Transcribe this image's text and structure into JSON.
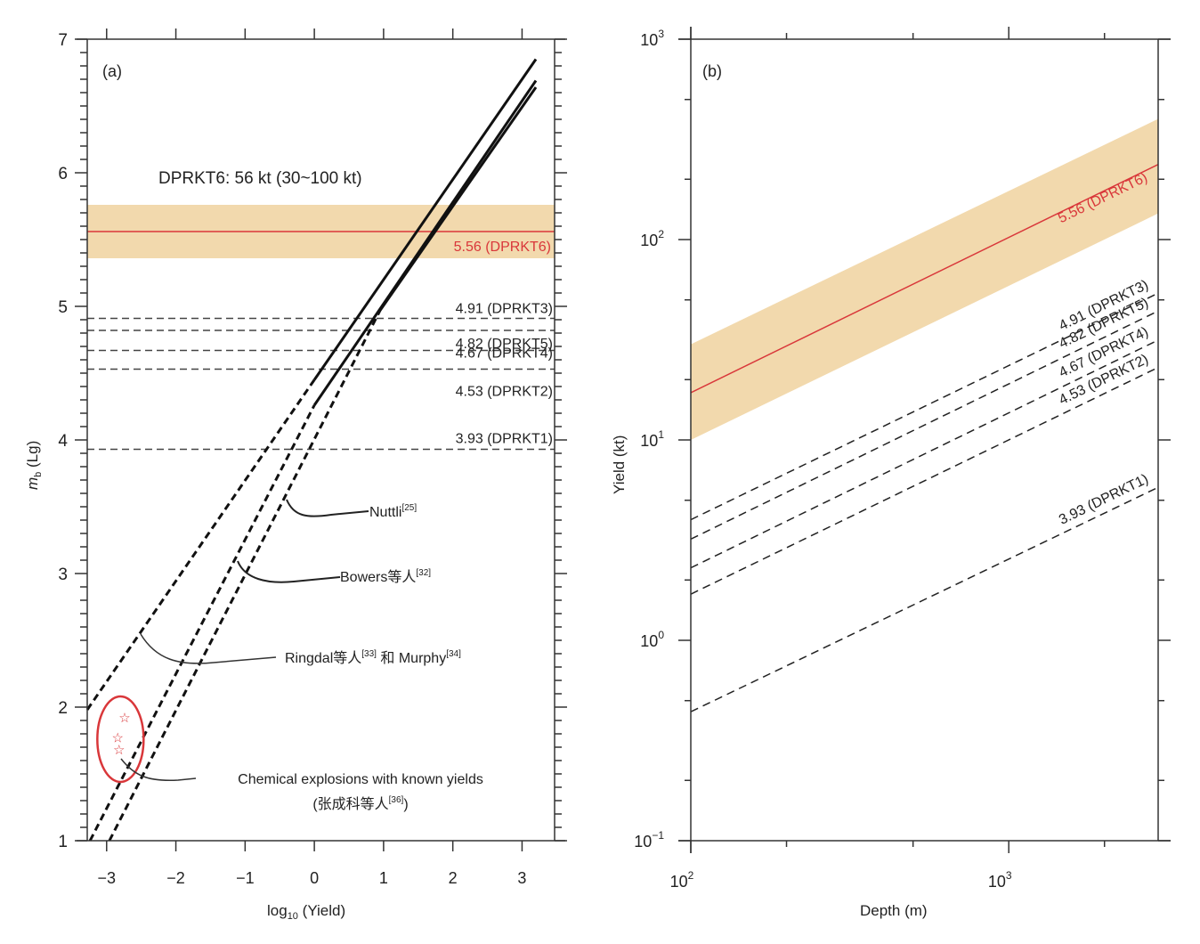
{
  "chart_data": [
    {
      "panel": "a",
      "type": "line",
      "panel_label": "(a)",
      "xlabel_main": "log",
      "xlabel_sub": "10",
      "xlabel_rest": " (Yield)",
      "ylabel_main": "m",
      "ylabel_sub": "b",
      "ylabel_rest": " (Lg)",
      "xlim": [
        -3.28,
        3.47
      ],
      "ylim": [
        1,
        7
      ],
      "xticks": [
        -3,
        -2,
        -1,
        0,
        1,
        2,
        3
      ],
      "xtick_labels": [
        "−3",
        "−2",
        "−1",
        "0",
        "1",
        "2",
        "3"
      ],
      "yticks": [
        1,
        2,
        3,
        4,
        5,
        6,
        7
      ],
      "ytick_labels": [
        "1",
        "2",
        "3",
        "4",
        "5",
        "6",
        "7"
      ],
      "y_minor_step": 0.1,
      "title_annotation": "DPRKT6: 56 kt (30~100 kt)",
      "band": {
        "y_low": 5.36,
        "y_high": 5.76,
        "color": "#f2d9ad"
      },
      "red_line": {
        "y": 5.56,
        "label": "5.56 (DPRKT6)",
        "color": "#d9373a"
      },
      "dashed_levels": [
        {
          "y": 4.91,
          "label": "4.91 (DPRKT3)"
        },
        {
          "y": 4.82,
          "label": "4.82 (DPRKT5)"
        },
        {
          "y": 4.67,
          "label": "4.67 (DPRKT4)"
        },
        {
          "y": 4.53,
          "label": "4.53 (DPRKT2)"
        },
        {
          "y": 3.93,
          "label": "3.93 (DPRKT1)"
        }
      ],
      "series": [
        {
          "name": "Ringdal & Murphy",
          "dashed": [
            [
              -3.28,
              1.98
            ],
            [
              0,
              4.45
            ]
          ],
          "solid": [
            [
              0,
              4.45
            ],
            [
              3.2,
              6.85
            ]
          ]
        },
        {
          "name": "Bowers",
          "dashed": [
            [
              -3.24,
              1.0
            ],
            [
              0,
              4.26
            ]
          ],
          "solid": [
            [
              0,
              4.26
            ],
            [
              3.2,
              6.69
            ]
          ]
        },
        {
          "name": "Nuttli",
          "dashed": [
            [
              -2.96,
              1.0
            ],
            [
              0.95,
              4.97
            ]
          ],
          "solid": [
            [
              0.95,
              4.97
            ],
            [
              3.2,
              6.64
            ]
          ]
        }
      ],
      "stars": [
        [
          -2.74,
          1.92
        ],
        [
          -2.84,
          1.77
        ],
        [
          -2.82,
          1.68
        ]
      ],
      "ellipse": {
        "cx": -2.8,
        "cy": 1.76,
        "rx": 0.33,
        "ry": 0.32,
        "color": "#d9373a"
      },
      "annotations": [
        {
          "text": "Nuttli",
          "sup": "[25]"
        },
        {
          "text": "Bowers等人",
          "sup": "[32]"
        },
        {
          "text": "Ringdal等人",
          "sup": "[33]",
          "text2": " 和 Murphy",
          "sup2": "[34]"
        },
        {
          "text": "Chemical explosions with known yields"
        },
        {
          "text": "(张成科等人",
          "sup": "[36]",
          "text2": ")"
        }
      ]
    },
    {
      "panel": "b",
      "type": "line",
      "panel_label": "(b)",
      "xlabel": "Depth (m)",
      "ylabel": "Yield (kt)",
      "xscale": "log",
      "yscale": "log",
      "xlim": [
        100,
        2950
      ],
      "ylim": [
        0.1,
        1000
      ],
      "xticks_major": [
        {
          "base": "10",
          "exp": "2",
          "value": 100
        },
        {
          "base": "10",
          "exp": "3",
          "value": 1000
        }
      ],
      "xticks_minor": [
        200,
        500,
        2000
      ],
      "yticks_major": [
        {
          "base": "10",
          "exp": "−1",
          "value": 0.1
        },
        {
          "base": "10",
          "exp": "0",
          "value": 1
        },
        {
          "base": "10",
          "exp": "1",
          "value": 10
        },
        {
          "base": "10",
          "exp": "2",
          "value": 100
        },
        {
          "base": "10",
          "exp": "3",
          "value": 1000
        }
      ],
      "yticks_minor": [
        0.2,
        0.5,
        2,
        5,
        20,
        50,
        200,
        500
      ],
      "band": {
        "x": [
          100,
          2950
        ],
        "y_low": [
          10,
          135
        ],
        "y_high": [
          30,
          400
        ],
        "color": "#f2d9ad"
      },
      "red_line": {
        "x": [
          100,
          2950
        ],
        "y": [
          17.2,
          237
        ],
        "label": "5.56 (DPRKT6)",
        "color": "#d9373a"
      },
      "series": [
        {
          "name": "4.91 (DPRKT3)",
          "x": [
            100,
            2950
          ],
          "y": [
            4.0,
            54
          ]
        },
        {
          "name": "4.82 (DPRKT5)",
          "x": [
            100,
            2950
          ],
          "y": [
            3.2,
            44
          ]
        },
        {
          "name": "4.67 (DPRKT4)",
          "x": [
            100,
            2950
          ],
          "y": [
            2.3,
            31.5
          ]
        },
        {
          "name": "4.53 (DPRKT2)",
          "x": [
            100,
            2950
          ],
          "y": [
            1.7,
            23
          ]
        },
        {
          "name": "3.93 (DPRKT1)",
          "x": [
            100,
            2950
          ],
          "y": [
            0.44,
            5.8
          ]
        }
      ]
    }
  ]
}
